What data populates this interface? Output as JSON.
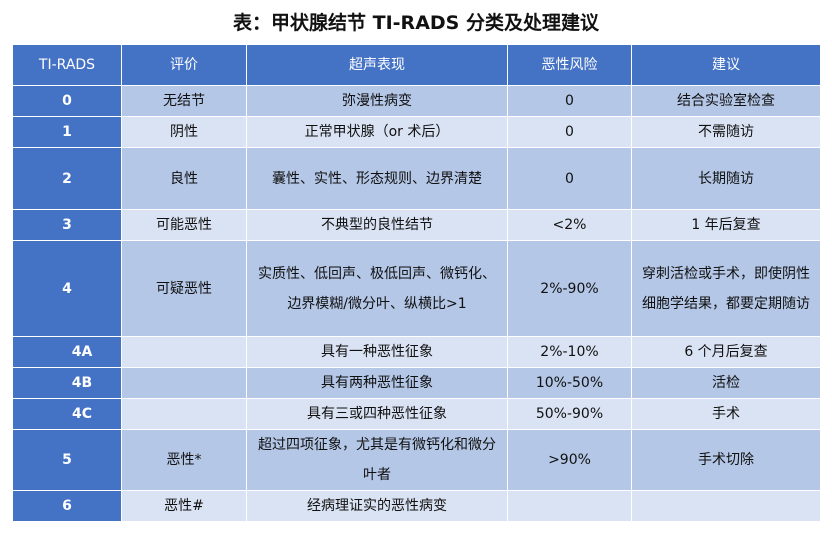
{
  "title": "表：甲状腺结节 TI-RADS 分类及处理建议",
  "headers": [
    "TI-RADS",
    "评价",
    "超声表现",
    "恶性风险",
    "建议"
  ],
  "rows": [
    {
      "cat": "0",
      "eval": "无结节",
      "us": "弥漫性病变",
      "risk": "0",
      "advice": "结合实验室检查"
    },
    {
      "cat": "1",
      "eval": "阴性",
      "us": "正常甲状腺（or 术后）",
      "risk": "0",
      "advice": "不需随访"
    },
    {
      "cat": "2",
      "eval": "良性",
      "us": "囊性、实性、形态规则、边界清楚",
      "risk": "0",
      "advice": "长期随访"
    },
    {
      "cat": "3",
      "eval": "可能恶性",
      "us": "不典型的良性结节",
      "risk": "<2%",
      "advice": "1 年后复查"
    },
    {
      "cat": "4",
      "eval": "可疑恶性",
      "us": "实质性、低回声、极低回声、微钙化、边界模糊/微分叶、纵横比>1",
      "risk": "2%-90%",
      "advice": "穿刺活检或手术，即使阴性细胞学结果，都要定期随访"
    },
    {
      "cat": "4A",
      "eval": "",
      "us": "具有一种恶性征象",
      "risk": "2%-10%",
      "advice": "6 个月后复查"
    },
    {
      "cat": "4B",
      "eval": "",
      "us": "具有两种恶性征象",
      "risk": "10%-50%",
      "advice": "活检"
    },
    {
      "cat": "4C",
      "eval": "",
      "us": "具有三或四种恶性征象",
      "risk": "50%-90%",
      "advice": "手术"
    },
    {
      "cat": "5",
      "eval": "恶性*",
      "us": "超过四项征象，尤其是有微钙化和微分叶者",
      "risk": ">90%",
      "advice": "手术切除"
    },
    {
      "cat": "6",
      "eval": "恶性#",
      "us": "经病理证实的恶性病变",
      "risk": "",
      "advice": ""
    }
  ],
  "colors": {
    "header": "#4472c4",
    "row_dark": "#b4c7e7",
    "row_light": "#dae3f3"
  }
}
